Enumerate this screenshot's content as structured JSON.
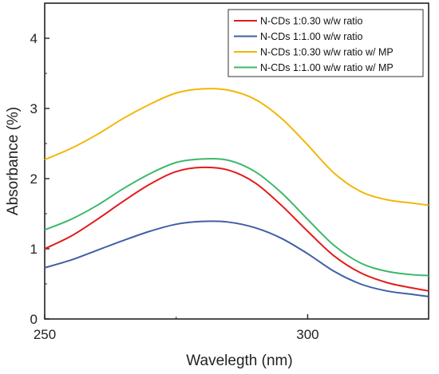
{
  "chart_data": {
    "type": "line",
    "xlabel": "Wavelegth (nm)",
    "ylabel": "Absorbance (%)",
    "xlim": [
      250,
      323
    ],
    "ylim": [
      0,
      4.5
    ],
    "xticks": [
      250,
      300
    ],
    "yticks": [
      0,
      1,
      2,
      3,
      4
    ],
    "grid": false,
    "legend_position": "top-right",
    "series": [
      {
        "name": "N-CDs 1:0.30 w/w ratio",
        "color": "#e31a1c",
        "x": [
          250,
          255,
          260,
          265,
          270,
          275,
          280,
          285,
          290,
          295,
          300,
          305,
          310,
          315,
          320,
          323
        ],
        "y": [
          1.0,
          1.18,
          1.42,
          1.68,
          1.92,
          2.1,
          2.16,
          2.12,
          1.94,
          1.62,
          1.25,
          0.9,
          0.66,
          0.52,
          0.44,
          0.4
        ]
      },
      {
        "name": "N-CDs 1:1.00 w/w ratio",
        "color": "#3f5fa6",
        "x": [
          250,
          255,
          260,
          265,
          270,
          275,
          280,
          285,
          290,
          295,
          300,
          305,
          310,
          315,
          320,
          323
        ],
        "y": [
          0.73,
          0.84,
          0.98,
          1.12,
          1.25,
          1.35,
          1.39,
          1.38,
          1.3,
          1.15,
          0.93,
          0.68,
          0.5,
          0.4,
          0.35,
          0.32
        ]
      },
      {
        "name": "N-CDs 1:0.30 w/w ratio w/ MP",
        "color": "#f2b705",
        "x": [
          250,
          255,
          260,
          265,
          270,
          275,
          280,
          285,
          290,
          295,
          300,
          305,
          310,
          315,
          320,
          323
        ],
        "y": [
          2.27,
          2.43,
          2.63,
          2.86,
          3.06,
          3.22,
          3.28,
          3.26,
          3.13,
          2.86,
          2.48,
          2.08,
          1.82,
          1.7,
          1.65,
          1.62
        ]
      },
      {
        "name": "N-CDs 1:1.00 w/w ratio w/ MP",
        "color": "#3cb96b",
        "x": [
          250,
          255,
          260,
          265,
          270,
          275,
          280,
          285,
          290,
          295,
          300,
          305,
          310,
          315,
          320,
          323
        ],
        "y": [
          1.27,
          1.42,
          1.62,
          1.86,
          2.07,
          2.23,
          2.28,
          2.26,
          2.1,
          1.8,
          1.42,
          1.05,
          0.8,
          0.68,
          0.63,
          0.62
        ]
      }
    ]
  }
}
